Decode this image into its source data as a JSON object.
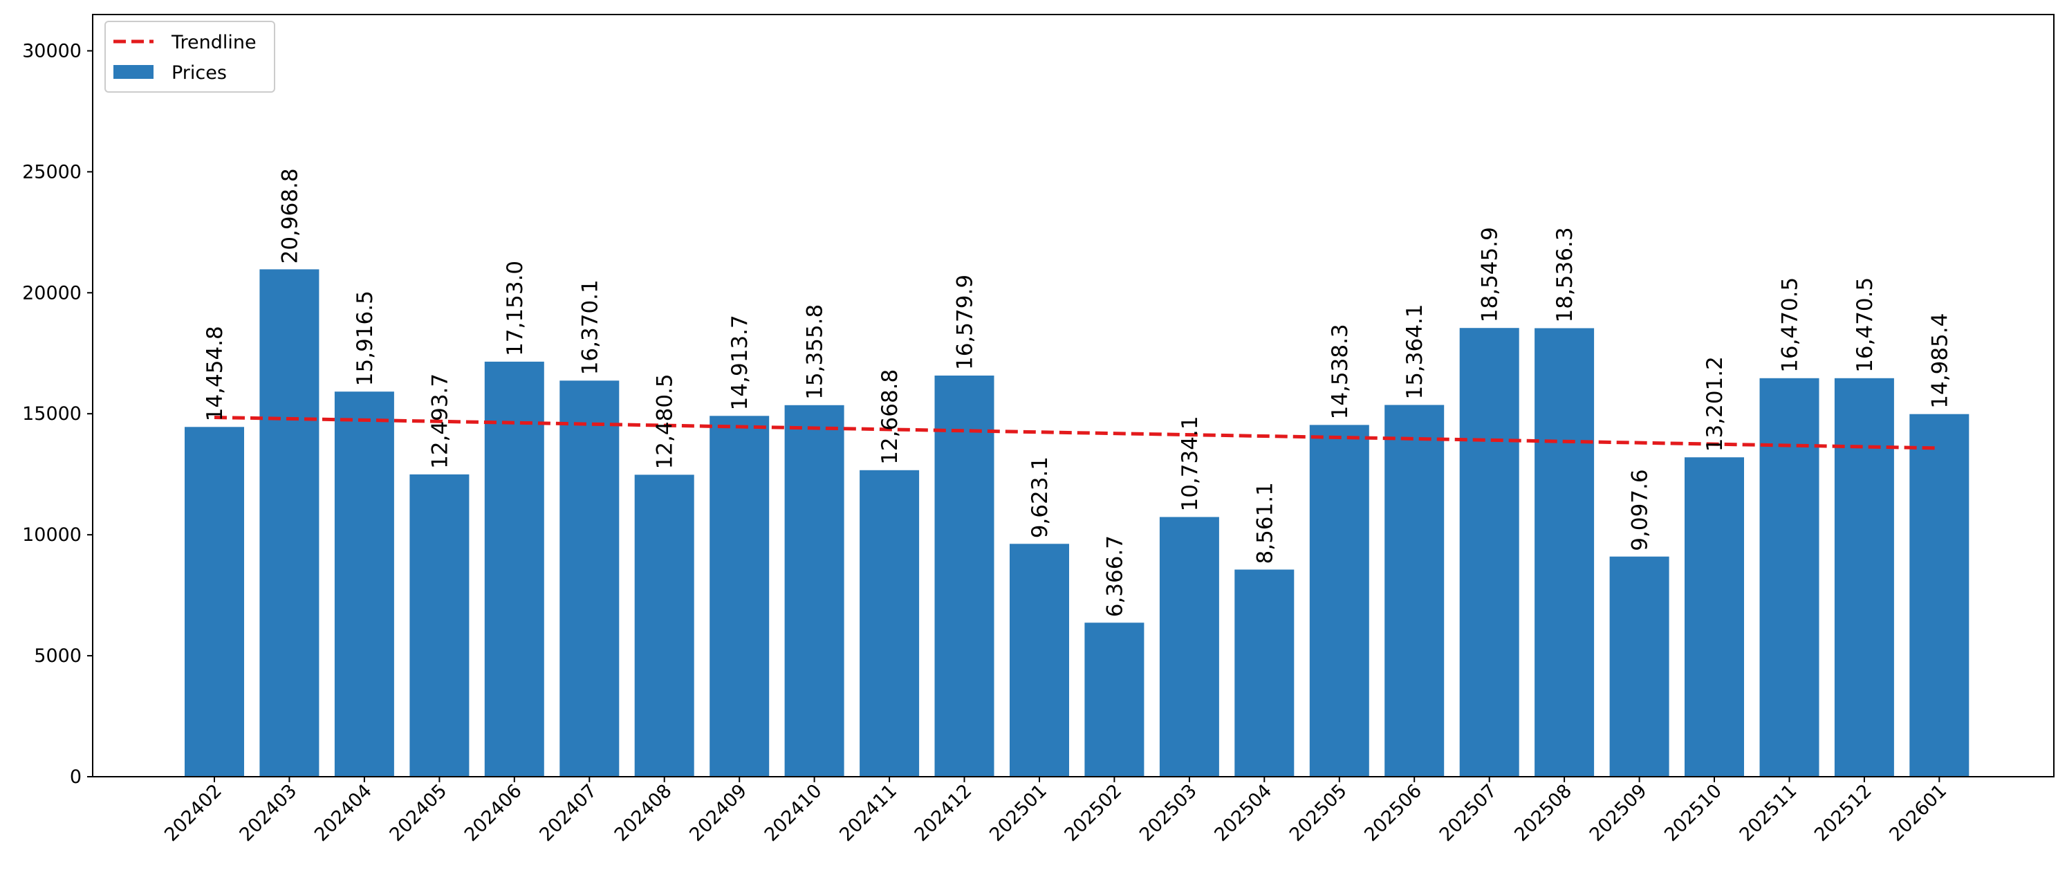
{
  "chart_data": {
    "type": "bar",
    "title": "",
    "xlabel": "",
    "ylabel": "",
    "categories": [
      "202402",
      "202403",
      "202404",
      "202405",
      "202406",
      "202407",
      "202408",
      "202409",
      "202410",
      "202411",
      "202412",
      "202501",
      "202502",
      "202503",
      "202504",
      "202505",
      "202506",
      "202507",
      "202508",
      "202509",
      "202510",
      "202511",
      "202512",
      "202601"
    ],
    "series": [
      {
        "name": "Prices",
        "values": [
          14454.8,
          20968.8,
          15916.5,
          12493.7,
          17153.0,
          16370.1,
          12480.5,
          14913.7,
          15355.8,
          12668.8,
          16579.9,
          9623.1,
          6366.7,
          10734.1,
          8561.1,
          14538.3,
          15364.1,
          18545.9,
          18536.3,
          9097.6,
          13201.2,
          16470.5,
          16470.5,
          14985.4
        ],
        "data_labels": [
          "14,454.8",
          "20,968.8",
          "15,916.5",
          "12,493.7",
          "17,153.0",
          "16,370.1",
          "12,480.5",
          "14,913.7",
          "15,355.8",
          "12,668.8",
          "16,579.9",
          "9,623.1",
          "6,366.7",
          "10,734.1",
          "8,561.1",
          "14,538.3",
          "15,364.1",
          "18,545.9",
          "18,536.3",
          "9,097.6",
          "13,201.2",
          "16,470.5",
          "16,470.5",
          "14,985.4"
        ],
        "color": "#2b7bba"
      }
    ],
    "trendline": {
      "name": "Trendline",
      "start_value": 14850,
      "end_value": 13580,
      "color": "#e31a1c",
      "style": "dashed"
    },
    "yticks": [
      0,
      5000,
      10000,
      15000,
      20000,
      25000,
      30000
    ],
    "ytick_labels": [
      "0",
      "5000",
      "10000",
      "15000",
      "20000",
      "25000",
      "30000"
    ],
    "ylim": [
      0,
      31500
    ],
    "grid": false,
    "legend_placement": "top-left",
    "legend": [
      {
        "label": "Trendline",
        "kind": "dashed-line",
        "color": "#e31a1c"
      },
      {
        "label": "Prices",
        "kind": "patch",
        "color": "#2b7bba"
      }
    ]
  }
}
